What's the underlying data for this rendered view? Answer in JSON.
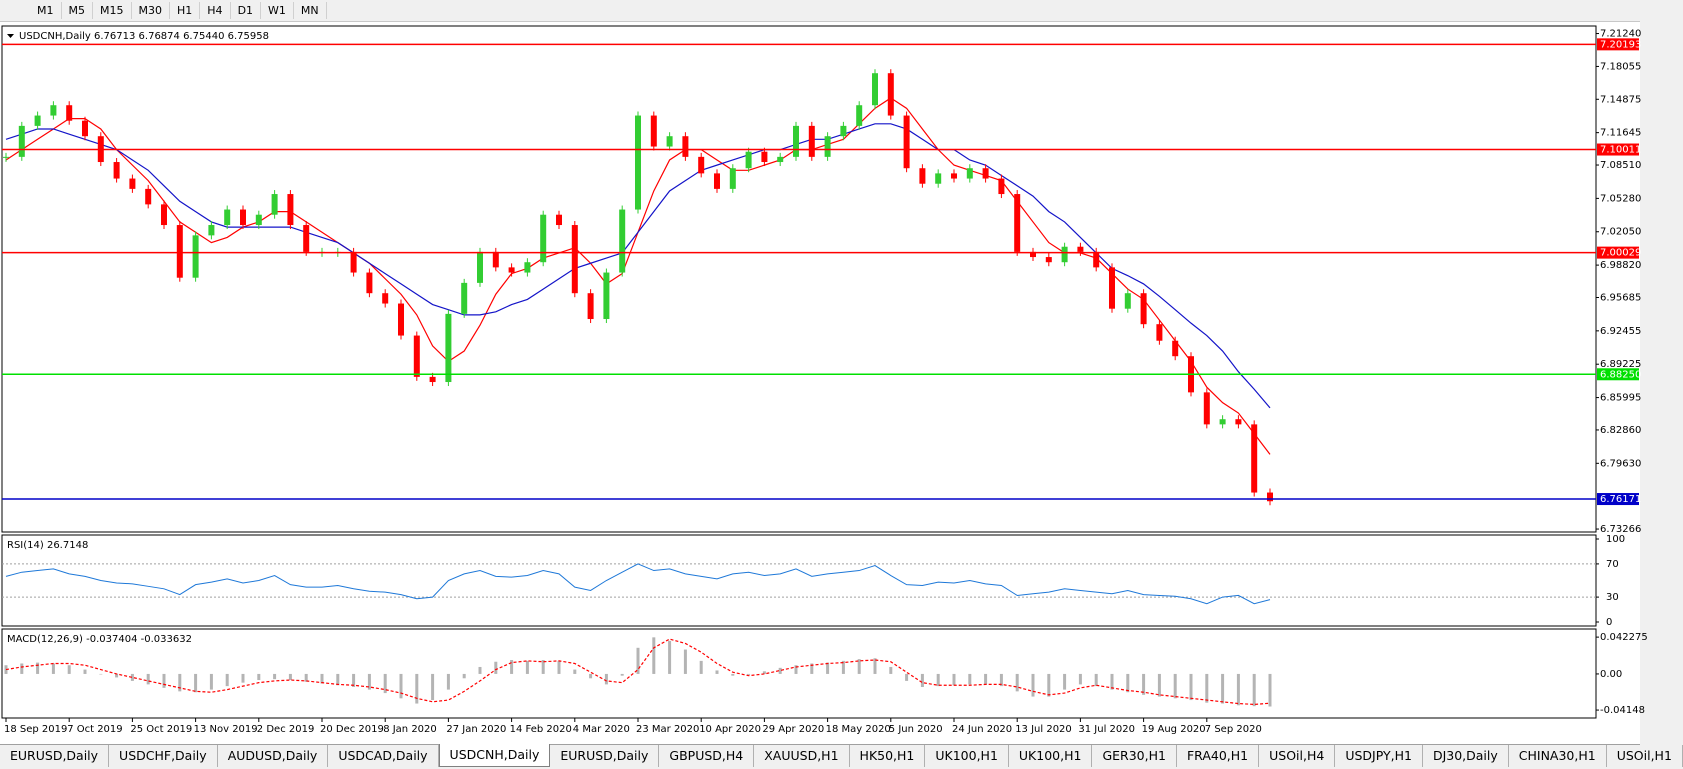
{
  "toolbar": {
    "timeframes": [
      "M1",
      "M5",
      "M15",
      "M30",
      "H1",
      "H4",
      "D1",
      "W1",
      "MN"
    ]
  },
  "chart_data": [
    {
      "type": "candlestick",
      "title": "USDCNH,Daily  6.76713 6.76874 6.75440 6.75958",
      "categories": [
        "18 Sep 2019",
        null,
        null,
        null,
        "7 Oct 2019",
        null,
        null,
        null,
        "25 Oct 2019",
        null,
        null,
        null,
        "13 Nov 2019",
        null,
        null,
        null,
        "2 Dec 2019",
        null,
        null,
        null,
        "20 Dec 2019",
        null,
        null,
        null,
        "8 Jan 2020",
        null,
        null,
        null,
        "27 Jan 2020",
        null,
        null,
        null,
        "14 Feb 2020",
        null,
        null,
        null,
        "4 Mar 2020",
        null,
        null,
        null,
        "23 Mar 2020",
        null,
        null,
        null,
        "10 Apr 2020",
        null,
        null,
        null,
        "29 Apr 2020",
        null,
        null,
        null,
        "18 May 2020",
        null,
        null,
        null,
        "5 Jun 2020",
        null,
        null,
        null,
        "24 Jun 2020",
        null,
        null,
        null,
        "13 Jul 2020",
        null,
        null,
        null,
        "31 Jul 2020",
        null,
        null,
        null,
        "19 Aug 2020",
        null,
        null,
        null,
        "7 Sep 2020",
        null,
        null,
        null,
        null
      ],
      "values": [
        7.093,
        7.123,
        7.133,
        7.143,
        7.128,
        7.113,
        7.088,
        7.072,
        7.062,
        7.047,
        7.027,
        6.976,
        7.017,
        7.027,
        7.042,
        7.027,
        7.037,
        7.057,
        7.027,
        7.001,
        7.001,
        7.001,
        6.981,
        6.961,
        6.951,
        6.92,
        6.88,
        6.875,
        6.941,
        6.971,
        7.001,
        6.986,
        6.981,
        6.991,
        7.037,
        7.027,
        6.961,
        6.936,
        6.981,
        7.042,
        7.133,
        7.103,
        7.113,
        7.093,
        7.077,
        7.062,
        7.082,
        7.098,
        7.088,
        7.093,
        7.123,
        7.093,
        7.113,
        7.123,
        7.143,
        7.174,
        7.133,
        7.082,
        7.067,
        7.077,
        7.072,
        7.082,
        7.072,
        7.057,
        7.001,
        6.996,
        6.991,
        7.006,
        7.001,
        6.986,
        6.946,
        6.961,
        6.931,
        6.915,
        6.9,
        6.865,
        6.834,
        6.839,
        6.834,
        6.768,
        6.75958
      ],
      "up_color": "#32cd32",
      "down_color": "#ff0000",
      "overlays": [
        {
          "color": "#ff0000",
          "values": [
            7.09,
            7.1,
            7.11,
            7.12,
            7.13,
            7.13,
            7.12,
            7.1,
            7.085,
            7.07,
            7.05,
            7.03,
            7.02,
            7.01,
            7.015,
            7.025,
            7.03,
            7.04,
            7.04,
            7.03,
            7.02,
            7.01,
            7.0,
            6.99,
            6.975,
            6.96,
            6.94,
            6.91,
            6.895,
            6.905,
            6.93,
            6.96,
            6.98,
            6.985,
            6.995,
            7.0,
            7.005,
            6.99,
            6.97,
            6.98,
            7.02,
            7.06,
            7.09,
            7.1,
            7.1,
            7.09,
            7.08,
            7.08,
            7.085,
            7.09,
            7.1,
            7.1,
            7.105,
            7.11,
            7.125,
            7.14,
            7.15,
            7.14,
            7.12,
            7.1,
            7.085,
            7.08,
            7.075,
            7.07,
            7.05,
            7.03,
            7.01,
            7.0,
            7.0,
            6.995,
            6.98,
            6.965,
            6.955,
            6.935,
            6.915,
            6.895,
            6.87,
            6.855,
            6.845,
            6.825,
            6.805
          ]
        },
        {
          "color": "#1414c8",
          "values": [
            7.11,
            7.115,
            7.12,
            7.12,
            7.115,
            7.11,
            7.105,
            7.1,
            7.09,
            7.08,
            7.065,
            7.05,
            7.04,
            7.03,
            7.025,
            7.025,
            7.025,
            7.025,
            7.025,
            7.02,
            7.015,
            7.01,
            7.0,
            6.99,
            6.98,
            6.97,
            6.96,
            6.95,
            6.945,
            6.94,
            6.94,
            6.943,
            6.95,
            6.955,
            6.965,
            6.975,
            6.985,
            6.99,
            6.995,
            7.0,
            7.02,
            7.04,
            7.06,
            7.07,
            7.08,
            7.085,
            7.09,
            7.095,
            7.1,
            7.1,
            7.105,
            7.11,
            7.11,
            7.115,
            7.12,
            7.125,
            7.125,
            7.12,
            7.11,
            7.1,
            7.1,
            7.09,
            7.085,
            7.075,
            7.065,
            7.055,
            7.04,
            7.03,
            7.015,
            7.0,
            6.985,
            6.978,
            6.97,
            6.958,
            6.945,
            6.932,
            6.92,
            6.905,
            6.885,
            6.868,
            6.85
          ]
        }
      ],
      "levels": [
        {
          "value": 7.20193,
          "color": "#ff0000"
        },
        {
          "value": 7.10011,
          "color": "#ff0000"
        },
        {
          "value": 7.00029,
          "color": "#ff0000"
        },
        {
          "value": 6.8825,
          "label": "6.88250",
          "color": "#00e000"
        },
        {
          "value": 6.76171,
          "color": "#0000c8"
        }
      ],
      "ylim": [
        6.7298,
        7.2197
      ],
      "yticks": [
        {
          "value": 7.2124,
          "label": "7.21240"
        },
        7.18055,
        7.14875,
        7.11645,
        {
          "value": 7.0851,
          "label": "7.08510"
        },
        {
          "value": 7.0528,
          "label": "7.05280"
        },
        {
          "value": 7.0205,
          "label": "7.02050"
        },
        {
          "value": 6.9882,
          "label": "6.98820"
        },
        6.95685,
        6.92455,
        6.89225,
        6.85995,
        {
          "value": 6.8286,
          "label": "6.82860"
        },
        {
          "value": 6.7963,
          "label": "6.79630"
        },
        6.73266
      ]
    },
    {
      "type": "line",
      "title": "RSI(14) 26.7148",
      "color": "#1e78d8",
      "values": [
        55,
        60,
        62,
        64,
        58,
        55,
        50,
        47,
        46,
        43,
        40,
        33,
        45,
        48,
        52,
        47,
        50,
        56,
        45,
        42,
        42,
        44,
        40,
        37,
        36,
        33,
        28,
        30,
        50,
        58,
        62,
        55,
        54,
        56,
        62,
        58,
        42,
        38,
        50,
        60,
        70,
        62,
        64,
        58,
        55,
        52,
        58,
        60,
        56,
        58,
        64,
        55,
        58,
        60,
        62,
        68,
        56,
        45,
        44,
        48,
        47,
        50,
        46,
        44,
        32,
        34,
        36,
        40,
        38,
        36,
        34,
        38,
        33,
        32,
        31,
        28,
        22,
        30,
        32,
        22,
        27
      ],
      "ylim": [
        0,
        100
      ],
      "yticks": [
        100,
        70,
        30,
        0
      ]
    },
    {
      "type": "bar",
      "title": "MACD(12,26,9) -0.037404 -0.033632",
      "color": "#b4b4b4",
      "values": [
        0.01,
        0.012,
        0.013,
        0.012,
        0.01,
        0.005,
        0.0,
        -0.004,
        -0.008,
        -0.012,
        -0.016,
        -0.02,
        -0.021,
        -0.018,
        -0.014,
        -0.01,
        -0.007,
        -0.006,
        -0.007,
        -0.009,
        -0.011,
        -0.013,
        -0.015,
        -0.018,
        -0.022,
        -0.028,
        -0.034,
        -0.03,
        -0.018,
        -0.005,
        0.008,
        0.014,
        0.016,
        0.015,
        0.016,
        0.015,
        0.005,
        -0.005,
        -0.012,
        -0.002,
        0.03,
        0.042,
        0.038,
        0.028,
        0.015,
        0.004,
        -0.002,
        -0.001,
        0.003,
        0.007,
        0.01,
        0.012,
        0.013,
        0.015,
        0.017,
        0.018,
        0.008,
        -0.008,
        -0.015,
        -0.014,
        -0.013,
        -0.012,
        -0.012,
        -0.014,
        -0.02,
        -0.026,
        -0.026,
        -0.018,
        -0.012,
        -0.014,
        -0.018,
        -0.021,
        -0.024,
        -0.026,
        -0.028,
        -0.03,
        -0.033,
        -0.034,
        -0.036,
        -0.037,
        -0.0374
      ],
      "signal": {
        "color": "#ff0000",
        "values": [
          0.005,
          0.008,
          0.01,
          0.012,
          0.012,
          0.01,
          0.005,
          0.0,
          -0.004,
          -0.008,
          -0.012,
          -0.016,
          -0.02,
          -0.021,
          -0.018,
          -0.014,
          -0.01,
          -0.008,
          -0.007,
          -0.008,
          -0.01,
          -0.012,
          -0.013,
          -0.015,
          -0.018,
          -0.022,
          -0.028,
          -0.032,
          -0.03,
          -0.02,
          -0.008,
          0.005,
          0.013,
          0.015,
          0.014,
          0.015,
          0.012,
          0.002,
          -0.008,
          -0.01,
          0.005,
          0.03,
          0.04,
          0.035,
          0.025,
          0.012,
          0.002,
          -0.002,
          0.0,
          0.004,
          0.008,
          0.01,
          0.012,
          0.013,
          0.015,
          0.016,
          0.014,
          0.002,
          -0.01,
          -0.013,
          -0.013,
          -0.013,
          -0.012,
          -0.012,
          -0.015,
          -0.02,
          -0.024,
          -0.022,
          -0.016,
          -0.013,
          -0.016,
          -0.019,
          -0.021,
          -0.024,
          -0.026,
          -0.028,
          -0.03,
          -0.032,
          -0.034,
          -0.035,
          -0.0336
        ]
      },
      "ylim": [
        -0.046,
        0.047
      ],
      "yticks": [
        0.042275,
        {
          "value": 0,
          "label": "0.00"
        },
        -0.04148
      ]
    }
  ],
  "tabs": [
    "EURUSD,Daily",
    "USDCHF,Daily",
    "AUDUSD,Daily",
    "USDCAD,Daily",
    "USDCNH,Daily",
    "EURUSD,Daily",
    "GBPUSD,H4",
    "XAUUSD,H1",
    "HK50,H1",
    "UK100,H1",
    "UK100,H1",
    "GER30,H1",
    "FRA40,H1",
    "USOil,H4",
    "USDJPY,H1",
    "DJ30,Daily",
    "CHINA30,H1",
    "USOil,H1"
  ],
  "active_tab": 4
}
